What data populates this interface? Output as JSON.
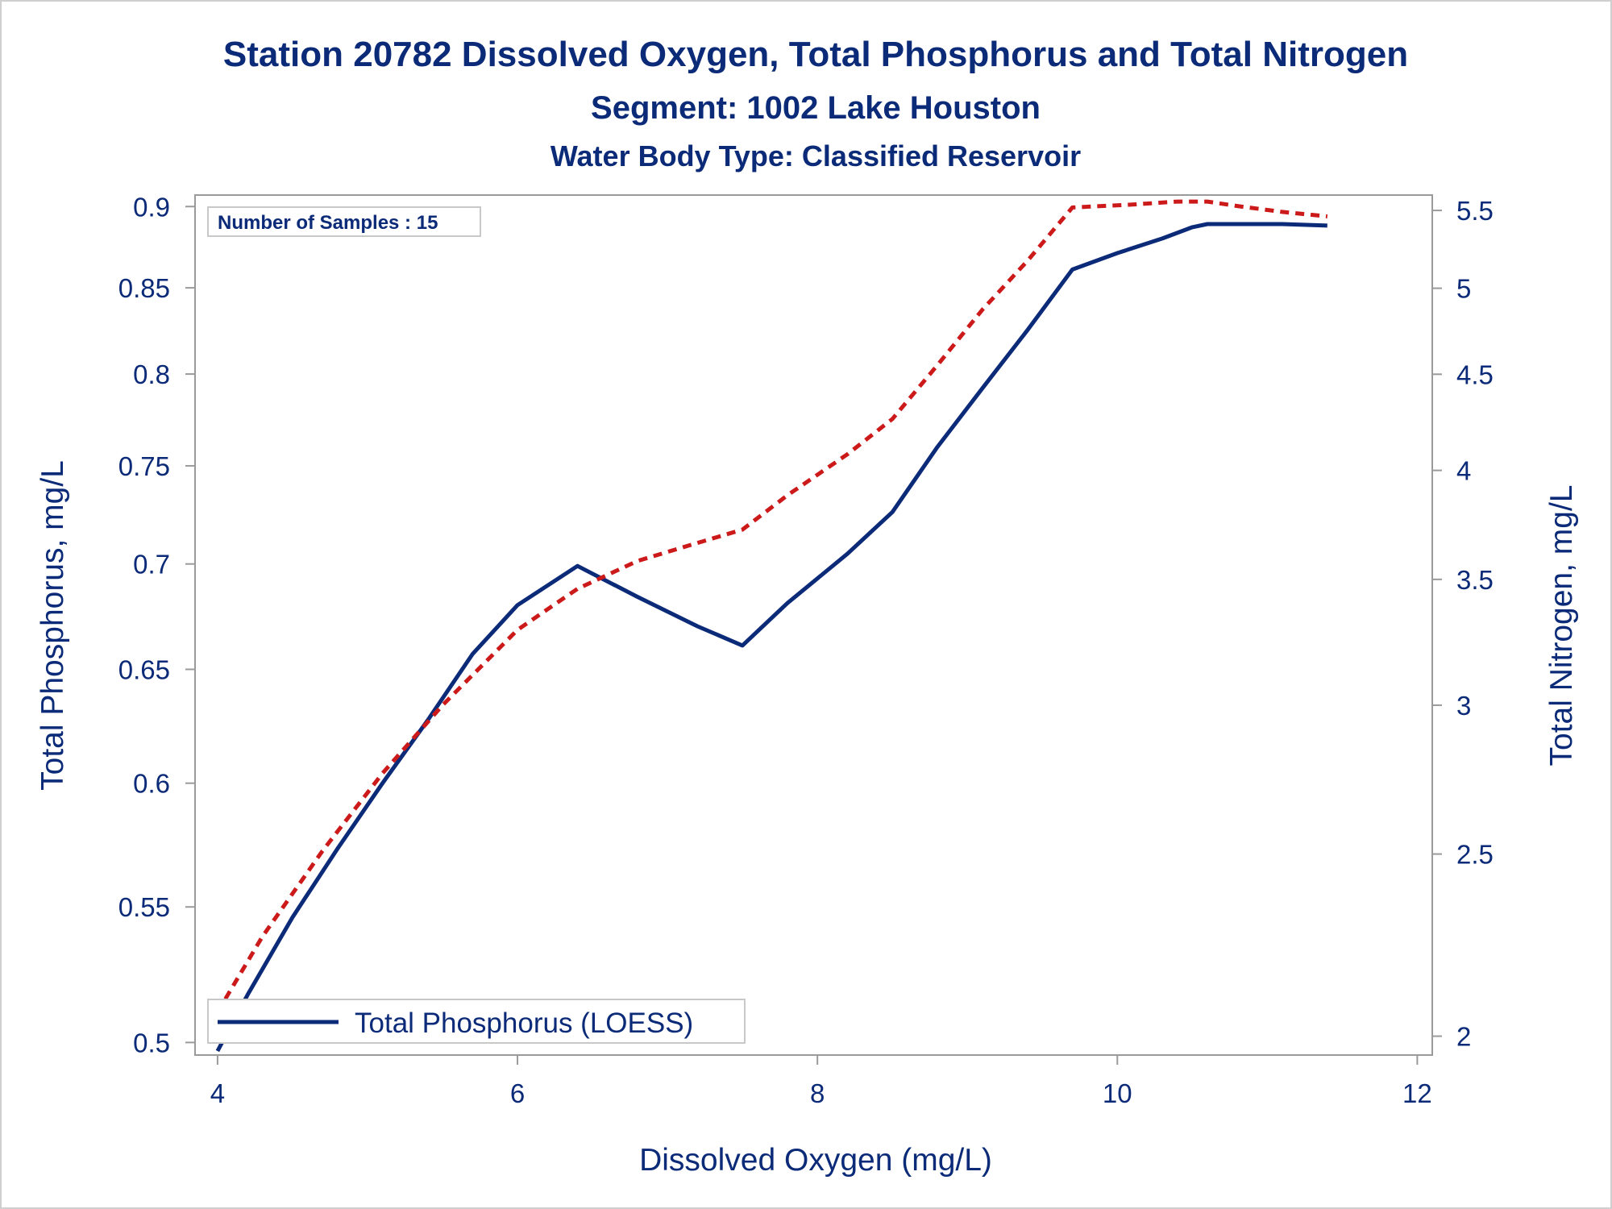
{
  "chart_data": {
    "type": "line",
    "title": "Station 20782  Dissolved Oxygen, Total Phosphorus and Total Nitrogen",
    "subtitle": "Segment: 1002  Lake Houston",
    "subtitle2": "Water Body Type: Classified Reservoir",
    "xlabel": "Dissolved Oxygen (mg/L)",
    "ylabel": "Total Phosphorus, mg/L",
    "y2label": "Total Nitrogen, mg/L",
    "xlim": [
      3.85,
      12.1
    ],
    "ylim": [
      0.4956,
      0.9073
    ],
    "y2lim": [
      1.9543,
      5.6047
    ],
    "y_scale": "log",
    "y2_scale": "log",
    "x_ticks": [
      "4",
      "6",
      "8",
      "10",
      "12"
    ],
    "y_ticks": [
      "0.5",
      "0.55",
      "0.6",
      "0.65",
      "0.7",
      "0.75",
      "0.8",
      "0.85",
      "0.9"
    ],
    "y2_ticks": [
      "2",
      "2.5",
      "3",
      "3.5",
      "4",
      "4.5",
      "5",
      "5.5"
    ],
    "grid": false,
    "annotation": "Number of Samples : 15",
    "legend": {
      "placement": "bottom-left",
      "entries": [
        "Total Phosphorus (LOESS)"
      ]
    },
    "series": [
      {
        "name": "Total Phosphorus (LOESS)",
        "axis": "left",
        "color": "#0b2a78",
        "style": "solid",
        "x": [
          4.0,
          4.2,
          4.5,
          4.8,
          5.1,
          5.4,
          5.7,
          6.0,
          6.4,
          6.8,
          7.2,
          7.5,
          7.8,
          8.2,
          8.5,
          8.8,
          9.1,
          9.4,
          9.7,
          10.0,
          10.3,
          10.5,
          10.6,
          10.7,
          10.9,
          11.1,
          11.4
        ],
        "y": [
          0.497,
          0.517,
          0.546,
          0.573,
          0.6,
          0.627,
          0.657,
          0.68,
          0.699,
          0.684,
          0.67,
          0.661,
          0.681,
          0.705,
          0.726,
          0.76,
          0.792,
          0.825,
          0.861,
          0.871,
          0.88,
          0.887,
          0.889,
          0.889,
          0.889,
          0.889,
          0.888
        ]
      },
      {
        "name": "",
        "axis": "right",
        "color": "#cc1a1a",
        "style": "dashed",
        "x": [
          4.0,
          4.3,
          4.7,
          5.1,
          5.5,
          6.0,
          6.4,
          6.8,
          7.2,
          7.5,
          7.8,
          8.2,
          8.5,
          8.8,
          9.1,
          9.4,
          9.7,
          10.1,
          10.4,
          10.6,
          10.8,
          11.1,
          11.4
        ],
        "y": [
          2.06,
          2.26,
          2.51,
          2.76,
          3.0,
          3.29,
          3.46,
          3.58,
          3.66,
          3.72,
          3.88,
          4.08,
          4.26,
          4.55,
          4.87,
          5.17,
          5.52,
          5.54,
          5.56,
          5.56,
          5.53,
          5.49,
          5.46
        ]
      }
    ]
  }
}
